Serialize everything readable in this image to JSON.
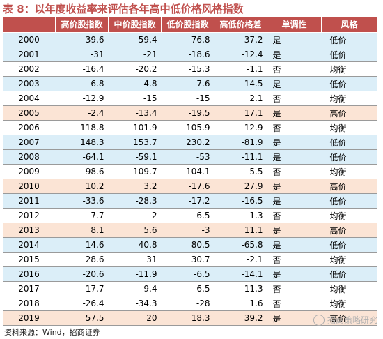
{
  "title": "表 8：以年度收益率来评估各年高中低价格风格指数",
  "headers": {
    "year": "",
    "high": "高价股指数",
    "mid": "中价股指数",
    "low": "低价股指数",
    "spread": "高低价格差",
    "monotonic": "单调性",
    "style": "风格"
  },
  "rows": [
    {
      "year": "2000",
      "high": "39.6",
      "mid": "59.4",
      "low": "76.8",
      "spread": "-37.2",
      "monotonic": "是",
      "style": "低价"
    },
    {
      "year": "2001",
      "high": "-31",
      "mid": "-21",
      "low": "-18.6",
      "spread": "-12.4",
      "monotonic": "是",
      "style": "低价"
    },
    {
      "year": "2002",
      "high": "-16.4",
      "mid": "-20.2",
      "low": "-15.3",
      "spread": "-1.1",
      "monotonic": "否",
      "style": "均衡"
    },
    {
      "year": "2003",
      "high": "-6.8",
      "mid": "-4.8",
      "low": "7.6",
      "spread": "-14.5",
      "monotonic": "是",
      "style": "低价"
    },
    {
      "year": "2004",
      "high": "-12.9",
      "mid": "-15",
      "low": "-15",
      "spread": "2.1",
      "monotonic": "否",
      "style": "均衡"
    },
    {
      "year": "2005",
      "high": "-2.4",
      "mid": "-13.4",
      "low": "-19.5",
      "spread": "17.1",
      "monotonic": "是",
      "style": "高价"
    },
    {
      "year": "2006",
      "high": "118.8",
      "mid": "101.9",
      "low": "105.9",
      "spread": "12.9",
      "monotonic": "否",
      "style": "均衡"
    },
    {
      "year": "2007",
      "high": "148.3",
      "mid": "153.7",
      "low": "230.2",
      "spread": "-81.9",
      "monotonic": "是",
      "style": "低价"
    },
    {
      "year": "2008",
      "high": "-64.1",
      "mid": "-59.1",
      "low": "-53",
      "spread": "-11.1",
      "monotonic": "是",
      "style": "低价"
    },
    {
      "year": "2009",
      "high": "98.6",
      "mid": "109.7",
      "low": "104.1",
      "spread": "-5.5",
      "monotonic": "否",
      "style": "均衡"
    },
    {
      "year": "2010",
      "high": "10.2",
      "mid": "3.2",
      "low": "-17.6",
      "spread": "27.9",
      "monotonic": "是",
      "style": "高价"
    },
    {
      "year": "2011",
      "high": "-33.6",
      "mid": "-28.3",
      "low": "-17.2",
      "spread": "-16.5",
      "monotonic": "是",
      "style": "低价"
    },
    {
      "year": "2012",
      "high": "7.7",
      "mid": "2",
      "low": "6.5",
      "spread": "1.3",
      "monotonic": "否",
      "style": "均衡"
    },
    {
      "year": "2013",
      "high": "8.1",
      "mid": "5.6",
      "low": "-3",
      "spread": "11.1",
      "monotonic": "是",
      "style": "高价"
    },
    {
      "year": "2014",
      "high": "14.6",
      "mid": "40.8",
      "low": "80.5",
      "spread": "-65.8",
      "monotonic": "是",
      "style": "低价"
    },
    {
      "year": "2015",
      "high": "28.6",
      "mid": "31",
      "low": "30.7",
      "spread": "-2.1",
      "monotonic": "否",
      "style": "均衡"
    },
    {
      "year": "2016",
      "high": "-20.6",
      "mid": "-11.9",
      "low": "-6.5",
      "spread": "-14.1",
      "monotonic": "是",
      "style": "低价"
    },
    {
      "year": "2017",
      "high": "17.7",
      "mid": "-9.4",
      "low": "6.5",
      "spread": "11.3",
      "monotonic": "否",
      "style": "均衡"
    },
    {
      "year": "2018",
      "high": "-26.4",
      "mid": "-34.3",
      "low": "-28",
      "spread": "1.6",
      "monotonic": "否",
      "style": "均衡"
    },
    {
      "year": "2019",
      "high": "57.5",
      "mid": "20",
      "low": "18.3",
      "spread": "39.2",
      "monotonic": "是",
      "style": "高价"
    }
  ],
  "source": "资料来源：Wind，招商证券",
  "watermark": "招商策略研究",
  "colors": {
    "header_bg": "#c0504d",
    "high_row_bg": "#fbe4d5",
    "low_row_bg": "#dbeef8",
    "balanced_row_bg": "#ffffff"
  }
}
